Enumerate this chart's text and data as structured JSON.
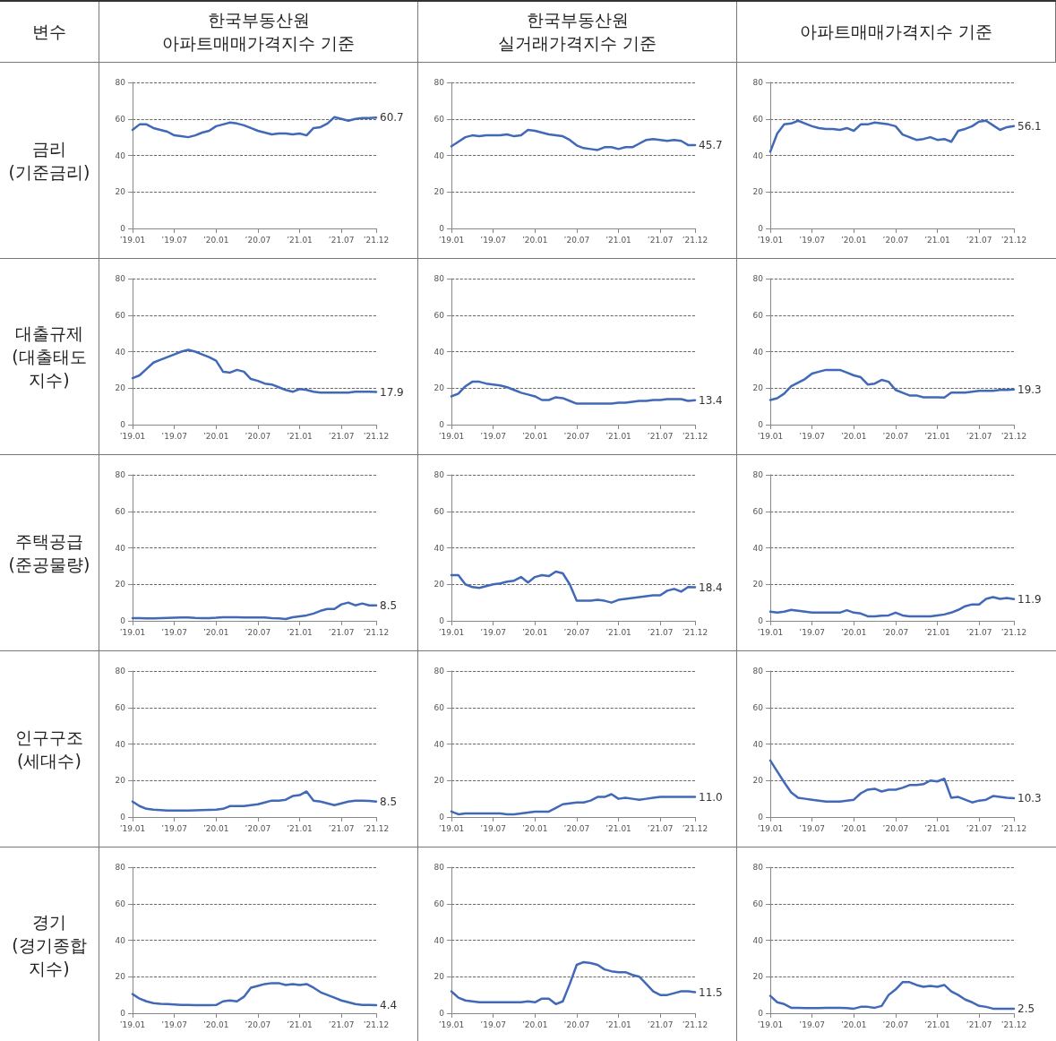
{
  "chart_data": [
    {
      "type": "other",
      "annotations": [
        "변수",
        "한국부동산원\n아파트매매가격지수 기준",
        "한국부동산원\n실거래가격지수 기준",
        "아파트매매가격지수 기준",
        "금리\n(기준금리)",
        "대출규제\n(대출태도\n지수)",
        "주택공급\n(준공물량)",
        "인구구조\n(세대수)",
        "경기\n(경기종합\n지수)"
      ]
    },
    {
      "type": "line",
      "categories": [
        "’19.01",
        null,
        null,
        null,
        null,
        null,
        "’19.07",
        null,
        null,
        null,
        null,
        null,
        "’20.01",
        null,
        null,
        null,
        null,
        null,
        "’20.07",
        null,
        null,
        null,
        null,
        null,
        "’21.01",
        null,
        null,
        null,
        null,
        null,
        "’21.07",
        null,
        null,
        null,
        null,
        "’21.12"
      ],
      "ylim": [
        0,
        80
      ],
      "yticks": [
        0,
        20,
        40,
        60,
        80
      ],
      "grid": "y",
      "marker": "none",
      "series": [
        {
          "color": "#4169b8",
          "values": [
            54,
            57,
            57,
            55,
            54,
            53,
            51,
            50.5,
            50,
            51,
            52.5,
            53.5,
            56,
            57,
            58,
            57.5,
            56.5,
            55,
            53.5,
            52.5,
            51.5,
            52,
            52,
            51.5,
            52,
            51,
            55,
            55.5,
            57.5,
            61,
            60,
            59,
            60,
            60.5,
            60.5,
            60.7
          ],
          "value_labels": [
            null,
            null,
            null,
            null,
            null,
            null,
            null,
            null,
            null,
            null,
            null,
            null,
            null,
            null,
            null,
            null,
            null,
            null,
            null,
            null,
            null,
            null,
            null,
            null,
            null,
            null,
            null,
            null,
            null,
            null,
            null,
            null,
            null,
            null,
            null,
            "60.7"
          ]
        }
      ]
    },
    {
      "type": "line",
      "categories": [
        "’19.01",
        null,
        null,
        null,
        null,
        null,
        "’19.07",
        null,
        null,
        null,
        null,
        null,
        "’20.01",
        null,
        null,
        null,
        null,
        null,
        "’20.07",
        null,
        null,
        null,
        null,
        null,
        "’21.01",
        null,
        null,
        null,
        null,
        null,
        "’21.07",
        null,
        null,
        null,
        null,
        "’21.12"
      ],
      "ylim": [
        0,
        80
      ],
      "yticks": [
        0,
        20,
        40,
        60,
        80
      ],
      "grid": "y",
      "marker": "none",
      "series": [
        {
          "color": "#4169b8",
          "values": [
            45,
            47.5,
            50,
            51,
            50.5,
            51,
            51,
            51,
            51.5,
            50.5,
            51,
            54,
            53.5,
            52.5,
            51.5,
            51,
            50.5,
            48.5,
            45.5,
            44,
            43.5,
            43,
            44.5,
            44.5,
            43.5,
            44.5,
            44.5,
            46.5,
            48.5,
            49,
            48.5,
            48,
            48.5,
            48,
            45.7,
            45.7
          ],
          "value_labels": [
            null,
            null,
            null,
            null,
            null,
            null,
            null,
            null,
            null,
            null,
            null,
            null,
            null,
            null,
            null,
            null,
            null,
            null,
            null,
            null,
            null,
            null,
            null,
            null,
            null,
            null,
            null,
            null,
            null,
            null,
            null,
            null,
            null,
            null,
            null,
            "45.7"
          ]
        }
      ]
    },
    {
      "type": "line",
      "categories": [
        "’19.01",
        null,
        null,
        null,
        null,
        null,
        "’19.07",
        null,
        null,
        null,
        null,
        null,
        "’20.01",
        null,
        null,
        null,
        null,
        null,
        "’20.07",
        null,
        null,
        null,
        null,
        null,
        "’21.01",
        null,
        null,
        null,
        null,
        null,
        "’21.07",
        null,
        null,
        null,
        null,
        "’21.12"
      ],
      "ylim": [
        0,
        80
      ],
      "yticks": [
        0,
        20,
        40,
        60,
        80
      ],
      "grid": "y",
      "marker": "none",
      "series": [
        {
          "color": "#4169b8",
          "values": [
            42,
            52,
            57,
            57.5,
            59,
            57.5,
            56,
            55,
            54.5,
            54.5,
            54,
            55,
            53.5,
            57,
            57,
            58,
            57.5,
            57,
            56,
            51.5,
            50,
            48.5,
            49,
            50,
            48.5,
            49,
            47.5,
            53.5,
            54.5,
            56,
            58.5,
            59,
            56.5,
            54,
            55.5,
            56.1
          ],
          "value_labels": [
            null,
            null,
            null,
            null,
            null,
            null,
            null,
            null,
            null,
            null,
            null,
            null,
            null,
            null,
            null,
            null,
            null,
            null,
            null,
            null,
            null,
            null,
            null,
            null,
            null,
            null,
            null,
            null,
            null,
            null,
            null,
            null,
            null,
            null,
            null,
            "56.1"
          ]
        }
      ]
    },
    {
      "type": "line",
      "categories": [
        "’19.01",
        null,
        null,
        null,
        null,
        null,
        "’19.07",
        null,
        null,
        null,
        null,
        null,
        "’20.01",
        null,
        null,
        null,
        null,
        null,
        "’20.07",
        null,
        null,
        null,
        null,
        null,
        "’21.01",
        null,
        null,
        null,
        null,
        null,
        "’21.07",
        null,
        null,
        null,
        null,
        "’21.12"
      ],
      "ylim": [
        0,
        80
      ],
      "yticks": [
        0,
        20,
        40,
        60,
        80
      ],
      "grid": "y",
      "marker": "none",
      "series": [
        {
          "color": "#4169b8",
          "values": [
            25.5,
            27,
            30.5,
            34,
            35.5,
            37,
            38.5,
            40,
            41,
            40,
            38.5,
            37,
            35,
            29,
            28.5,
            30,
            29,
            25,
            24,
            22.5,
            22,
            20.5,
            19,
            18,
            19.5,
            19,
            18,
            17.5,
            17.5,
            17.5,
            17.5,
            17.5,
            18,
            18,
            18,
            17.9
          ],
          "value_labels": [
            null,
            null,
            null,
            null,
            null,
            null,
            null,
            null,
            null,
            null,
            null,
            null,
            null,
            null,
            null,
            null,
            null,
            null,
            null,
            null,
            null,
            null,
            null,
            null,
            null,
            null,
            null,
            null,
            null,
            null,
            null,
            null,
            null,
            null,
            null,
            "17.9"
          ]
        }
      ]
    },
    {
      "type": "line",
      "categories": [
        "’19.01",
        null,
        null,
        null,
        null,
        null,
        "’19.07",
        null,
        null,
        null,
        null,
        null,
        "’20.01",
        null,
        null,
        null,
        null,
        null,
        "’20.07",
        null,
        null,
        null,
        null,
        null,
        "’21.01",
        null,
        null,
        null,
        null,
        null,
        "’21.07",
        null,
        null,
        null,
        null,
        "’21.12"
      ],
      "ylim": [
        0,
        80
      ],
      "yticks": [
        0,
        20,
        40,
        60,
        80
      ],
      "grid": "y",
      "marker": "none",
      "series": [
        {
          "color": "#4169b8",
          "values": [
            15.5,
            17,
            21,
            23.5,
            23.5,
            22.5,
            22,
            21.5,
            20.5,
            19,
            17.5,
            16.5,
            15.5,
            13.5,
            13.5,
            15,
            14.5,
            13,
            11.5,
            11.5,
            11.5,
            11.5,
            11.5,
            11.5,
            12,
            12,
            12.5,
            13,
            13,
            13.5,
            13.5,
            14,
            14,
            14,
            13,
            13.4
          ],
          "value_labels": [
            null,
            null,
            null,
            null,
            null,
            null,
            null,
            null,
            null,
            null,
            null,
            null,
            null,
            null,
            null,
            null,
            null,
            null,
            null,
            null,
            null,
            null,
            null,
            null,
            null,
            null,
            null,
            null,
            null,
            null,
            null,
            null,
            null,
            null,
            null,
            "13.4"
          ]
        }
      ]
    },
    {
      "type": "line",
      "categories": [
        "’19.01",
        null,
        null,
        null,
        null,
        null,
        "’19.07",
        null,
        null,
        null,
        null,
        null,
        "’20.01",
        null,
        null,
        null,
        null,
        null,
        "’20.07",
        null,
        null,
        null,
        null,
        null,
        "’21.01",
        null,
        null,
        null,
        null,
        null,
        "’21.07",
        null,
        null,
        null,
        null,
        "’21.12"
      ],
      "ylim": [
        0,
        80
      ],
      "yticks": [
        0,
        20,
        40,
        60,
        80
      ],
      "grid": "y",
      "marker": "none",
      "series": [
        {
          "color": "#4169b8",
          "values": [
            13.5,
            14.5,
            17,
            21,
            23,
            25,
            28,
            29,
            30,
            30,
            30,
            28.5,
            27,
            26,
            22,
            22.5,
            24.5,
            23.5,
            19,
            17.5,
            16,
            16,
            15,
            15,
            15,
            14.8,
            17.5,
            17.5,
            17.5,
            18,
            18.5,
            18.5,
            18.5,
            19,
            19,
            19.3
          ],
          "value_labels": [
            null,
            null,
            null,
            null,
            null,
            null,
            null,
            null,
            null,
            null,
            null,
            null,
            null,
            null,
            null,
            null,
            null,
            null,
            null,
            null,
            null,
            null,
            null,
            null,
            null,
            null,
            null,
            null,
            null,
            null,
            null,
            null,
            null,
            null,
            null,
            "19.3"
          ]
        }
      ]
    },
    {
      "type": "line",
      "categories": [
        "’19.01",
        null,
        null,
        null,
        null,
        null,
        "’19.07",
        null,
        null,
        null,
        null,
        null,
        "’20.01",
        null,
        null,
        null,
        null,
        null,
        "’20.07",
        null,
        null,
        null,
        null,
        null,
        "’21.01",
        null,
        null,
        null,
        null,
        null,
        "’21.07",
        null,
        null,
        null,
        null,
        "’21.12"
      ],
      "ylim": [
        0,
        80
      ],
      "yticks": [
        0,
        20,
        40,
        60,
        80
      ],
      "grid": "y",
      "marker": "none",
      "series": [
        {
          "color": "#4169b8",
          "values": [
            1.5,
            1.5,
            1.4,
            1.4,
            1.5,
            1.6,
            1.7,
            1.8,
            1.8,
            1.6,
            1.5,
            1.5,
            1.7,
            2,
            2,
            2,
            1.9,
            1.9,
            1.8,
            1.8,
            1.5,
            1.3,
            1,
            2,
            2.5,
            3,
            4,
            5.5,
            6.5,
            6.5,
            9,
            10,
            8.5,
            9.5,
            8.5,
            8.5
          ],
          "value_labels": [
            null,
            null,
            null,
            null,
            null,
            null,
            null,
            null,
            null,
            null,
            null,
            null,
            null,
            null,
            null,
            null,
            null,
            null,
            null,
            null,
            null,
            null,
            null,
            null,
            null,
            null,
            null,
            null,
            null,
            null,
            null,
            null,
            null,
            null,
            null,
            "8.5"
          ]
        }
      ]
    },
    {
      "type": "line",
      "categories": [
        "’19.01",
        null,
        null,
        null,
        null,
        null,
        "’19.07",
        null,
        null,
        null,
        null,
        null,
        "’20.01",
        null,
        null,
        null,
        null,
        null,
        "’20.07",
        null,
        null,
        null,
        null,
        null,
        "’21.01",
        null,
        null,
        null,
        null,
        null,
        "’21.07",
        null,
        null,
        null,
        null,
        "’21.12"
      ],
      "ylim": [
        0,
        80
      ],
      "yticks": [
        0,
        20,
        40,
        60,
        80
      ],
      "grid": "y",
      "marker": "none",
      "series": [
        {
          "color": "#4169b8",
          "values": [
            25,
            25,
            20,
            18.5,
            18,
            19,
            20,
            20.5,
            21.5,
            22,
            24,
            21,
            24,
            25,
            24.5,
            27,
            26,
            20,
            11,
            11,
            11,
            11.5,
            11,
            10,
            11.5,
            12,
            12.5,
            13,
            13.5,
            14,
            14,
            16.5,
            17.5,
            16,
            18.5,
            18.4
          ],
          "value_labels": [
            null,
            null,
            null,
            null,
            null,
            null,
            null,
            null,
            null,
            null,
            null,
            null,
            null,
            null,
            null,
            null,
            null,
            null,
            null,
            null,
            null,
            null,
            null,
            null,
            null,
            null,
            null,
            null,
            null,
            null,
            null,
            null,
            null,
            null,
            null,
            "18.4"
          ]
        }
      ]
    },
    {
      "type": "line",
      "categories": [
        "’19.01",
        null,
        null,
        null,
        null,
        null,
        "’19.07",
        null,
        null,
        null,
        null,
        null,
        "’20.01",
        null,
        null,
        null,
        null,
        null,
        "’20.07",
        null,
        null,
        null,
        null,
        null,
        "’21.01",
        null,
        null,
        null,
        null,
        null,
        "’21.07",
        null,
        null,
        null,
        null,
        "’21.12"
      ],
      "ylim": [
        0,
        80
      ],
      "yticks": [
        0,
        20,
        40,
        60,
        80
      ],
      "grid": "y",
      "marker": "none",
      "series": [
        {
          "color": "#4169b8",
          "values": [
            5,
            4.5,
            5,
            6,
            5.5,
            5,
            4.5,
            4.5,
            4.5,
            4.5,
            4.5,
            5.8,
            4.5,
            4,
            2.5,
            2.5,
            2.8,
            3,
            4.5,
            3,
            2.5,
            2.5,
            2.5,
            2.5,
            3,
            3.5,
            4.5,
            6,
            8,
            9,
            9,
            12,
            13,
            12,
            12.5,
            11.9
          ],
          "value_labels": [
            null,
            null,
            null,
            null,
            null,
            null,
            null,
            null,
            null,
            null,
            null,
            null,
            null,
            null,
            null,
            null,
            null,
            null,
            null,
            null,
            null,
            null,
            null,
            null,
            null,
            null,
            null,
            null,
            null,
            null,
            null,
            null,
            null,
            null,
            null,
            "11.9"
          ]
        }
      ]
    },
    {
      "type": "line",
      "categories": [
        "’19.01",
        null,
        null,
        null,
        null,
        null,
        "’19.07",
        null,
        null,
        null,
        null,
        null,
        "’20.01",
        null,
        null,
        null,
        null,
        null,
        "’20.07",
        null,
        null,
        null,
        null,
        null,
        "’21.01",
        null,
        null,
        null,
        null,
        null,
        "’21.07",
        null,
        null,
        null,
        null,
        "’21.12"
      ],
      "ylim": [
        0,
        80
      ],
      "yticks": [
        0,
        20,
        40,
        60,
        80
      ],
      "grid": "y",
      "marker": "none",
      "series": [
        {
          "color": "#4169b8",
          "values": [
            8.5,
            6,
            4.5,
            4,
            3.8,
            3.6,
            3.5,
            3.5,
            3.6,
            3.7,
            3.8,
            3.9,
            4,
            4.5,
            6,
            6,
            6,
            6.5,
            7,
            8,
            9,
            9,
            9.5,
            11.5,
            12,
            14,
            9,
            8.5,
            7.5,
            6.5,
            7.5,
            8.5,
            9,
            9,
            8.8,
            8.5
          ],
          "value_labels": [
            null,
            null,
            null,
            null,
            null,
            null,
            null,
            null,
            null,
            null,
            null,
            null,
            null,
            null,
            null,
            null,
            null,
            null,
            null,
            null,
            null,
            null,
            null,
            null,
            null,
            null,
            null,
            null,
            null,
            null,
            null,
            null,
            null,
            null,
            null,
            "8.5"
          ]
        }
      ]
    },
    {
      "type": "line",
      "categories": [
        "’19.01",
        null,
        null,
        null,
        null,
        null,
        "’19.07",
        null,
        null,
        null,
        null,
        null,
        "’20.01",
        null,
        null,
        null,
        null,
        null,
        "’20.07",
        null,
        null,
        null,
        null,
        null,
        "’21.01",
        null,
        null,
        null,
        null,
        null,
        "’21.07",
        null,
        null,
        null,
        null,
        "’21.12"
      ],
      "ylim": [
        0,
        80
      ],
      "yticks": [
        0,
        20,
        40,
        60,
        80
      ],
      "grid": "y",
      "marker": "none",
      "series": [
        {
          "color": "#4169b8",
          "values": [
            3,
            1.5,
            2,
            2,
            2,
            2,
            2,
            2,
            1.5,
            1.5,
            2,
            2.5,
            3,
            3,
            3,
            5,
            7,
            7.5,
            8,
            8,
            9,
            11,
            11,
            12.5,
            10,
            10.5,
            10,
            9.5,
            10,
            10.5,
            11,
            11,
            11,
            11,
            11,
            11
          ],
          "value_labels": [
            null,
            null,
            null,
            null,
            null,
            null,
            null,
            null,
            null,
            null,
            null,
            null,
            null,
            null,
            null,
            null,
            null,
            null,
            null,
            null,
            null,
            null,
            null,
            null,
            null,
            null,
            null,
            null,
            null,
            null,
            null,
            null,
            null,
            null,
            null,
            "11.0"
          ]
        }
      ]
    },
    {
      "type": "line",
      "categories": [
        "’19.01",
        null,
        null,
        null,
        null,
        null,
        "’19.07",
        null,
        null,
        null,
        null,
        null,
        "’20.01",
        null,
        null,
        null,
        null,
        null,
        "’20.07",
        null,
        null,
        null,
        null,
        null,
        "’21.01",
        null,
        null,
        null,
        null,
        null,
        "’21.07",
        null,
        null,
        null,
        null,
        "’21.12"
      ],
      "ylim": [
        0,
        80
      ],
      "yticks": [
        0,
        20,
        40,
        60,
        80
      ],
      "grid": "y",
      "marker": "none",
      "series": [
        {
          "color": "#4169b8",
          "values": [
            31,
            25,
            19,
            13.5,
            10.5,
            10,
            9.5,
            9,
            8.5,
            8.5,
            8.5,
            9,
            9.5,
            13,
            15,
            15.5,
            14,
            15,
            15,
            16,
            17.5,
            17.5,
            18,
            20,
            19.5,
            21,
            10.5,
            11,
            9.5,
            8,
            9,
            9.5,
            11.5,
            11,
            10.5,
            10.3
          ],
          "value_labels": [
            null,
            null,
            null,
            null,
            null,
            null,
            null,
            null,
            null,
            null,
            null,
            null,
            null,
            null,
            null,
            null,
            null,
            null,
            null,
            null,
            null,
            null,
            null,
            null,
            null,
            null,
            null,
            null,
            null,
            null,
            null,
            null,
            null,
            null,
            null,
            "10.3"
          ]
        }
      ]
    },
    {
      "type": "line",
      "categories": [
        "’19.01",
        null,
        null,
        null,
        null,
        null,
        "’19.07",
        null,
        null,
        null,
        null,
        null,
        "’20.01",
        null,
        null,
        null,
        null,
        null,
        "’20.07",
        null,
        null,
        null,
        null,
        null,
        "’21.01",
        null,
        null,
        null,
        null,
        null,
        "’21.07",
        null,
        null,
        null,
        null,
        "’21.12"
      ],
      "ylim": [
        0,
        80
      ],
      "yticks": [
        0,
        20,
        40,
        60,
        80
      ],
      "grid": "y",
      "marker": "none",
      "series": [
        {
          "color": "#4169b8",
          "values": [
            10.5,
            8,
            6.5,
            5.5,
            5.2,
            5,
            4.8,
            4.6,
            4.5,
            4.4,
            4.4,
            4.4,
            4.5,
            6.5,
            7,
            6.5,
            9,
            14,
            15,
            16,
            16.5,
            16.5,
            15.5,
            16,
            15.5,
            16,
            14,
            11.5,
            10,
            8.5,
            7,
            6,
            5,
            4.5,
            4.5,
            4.4
          ],
          "value_labels": [
            null,
            null,
            null,
            null,
            null,
            null,
            null,
            null,
            null,
            null,
            null,
            null,
            null,
            null,
            null,
            null,
            null,
            null,
            null,
            null,
            null,
            null,
            null,
            null,
            null,
            null,
            null,
            null,
            null,
            null,
            null,
            null,
            null,
            null,
            null,
            "4.4"
          ]
        }
      ]
    },
    {
      "type": "line",
      "categories": [
        "’19.01",
        null,
        null,
        null,
        null,
        null,
        "’19.07",
        null,
        null,
        null,
        null,
        null,
        "’20.01",
        null,
        null,
        null,
        null,
        null,
        "’20.07",
        null,
        null,
        null,
        null,
        null,
        "’21.01",
        null,
        null,
        null,
        null,
        null,
        "’21.07",
        null,
        null,
        null,
        null,
        "’21.12"
      ],
      "ylim": [
        0,
        80
      ],
      "yticks": [
        0,
        20,
        40,
        60,
        80
      ],
      "grid": "y",
      "marker": "none",
      "series": [
        {
          "color": "#4169b8",
          "values": [
            12,
            8.5,
            7,
            6.5,
            6,
            6,
            6,
            6,
            6,
            6,
            6,
            6.5,
            6,
            8,
            8,
            5,
            6.5,
            16,
            26.5,
            28,
            27.5,
            26.5,
            24,
            23,
            22.5,
            22.5,
            21,
            20,
            16,
            12,
            10,
            10,
            11,
            12,
            12,
            11.5
          ],
          "value_labels": [
            null,
            null,
            null,
            null,
            null,
            null,
            null,
            null,
            null,
            null,
            null,
            null,
            null,
            null,
            null,
            null,
            null,
            null,
            null,
            null,
            null,
            null,
            null,
            null,
            null,
            null,
            null,
            null,
            null,
            null,
            null,
            null,
            null,
            null,
            null,
            "11.5"
          ]
        }
      ]
    },
    {
      "type": "line",
      "categories": [
        "’19.01",
        null,
        null,
        null,
        null,
        null,
        "’19.07",
        null,
        null,
        null,
        null,
        null,
        "’20.01",
        null,
        null,
        null,
        null,
        null,
        "’20.07",
        null,
        null,
        null,
        null,
        null,
        "’21.01",
        null,
        null,
        null,
        null,
        null,
        "’21.07",
        null,
        null,
        null,
        null,
        "’21.12"
      ],
      "ylim": [
        0,
        80
      ],
      "yticks": [
        0,
        20,
        40,
        60,
        80
      ],
      "grid": "y",
      "marker": "none",
      "series": [
        {
          "color": "#4169b8",
          "values": [
            9.5,
            6,
            5,
            3,
            3,
            2.8,
            2.8,
            2.8,
            2.9,
            3,
            3,
            2.8,
            2.5,
            3.5,
            3.5,
            3,
            4,
            10,
            13,
            17,
            17,
            15.5,
            14.5,
            15,
            14.5,
            15.5,
            12,
            10,
            7.5,
            6,
            4,
            3.5,
            2.5,
            2.5,
            2.5,
            2.5
          ],
          "value_labels": [
            null,
            null,
            null,
            null,
            null,
            null,
            null,
            null,
            null,
            null,
            null,
            null,
            null,
            null,
            null,
            null,
            null,
            null,
            null,
            null,
            null,
            null,
            null,
            null,
            null,
            null,
            null,
            null,
            null,
            null,
            null,
            null,
            null,
            null,
            null,
            "2.5"
          ]
        }
      ]
    }
  ]
}
